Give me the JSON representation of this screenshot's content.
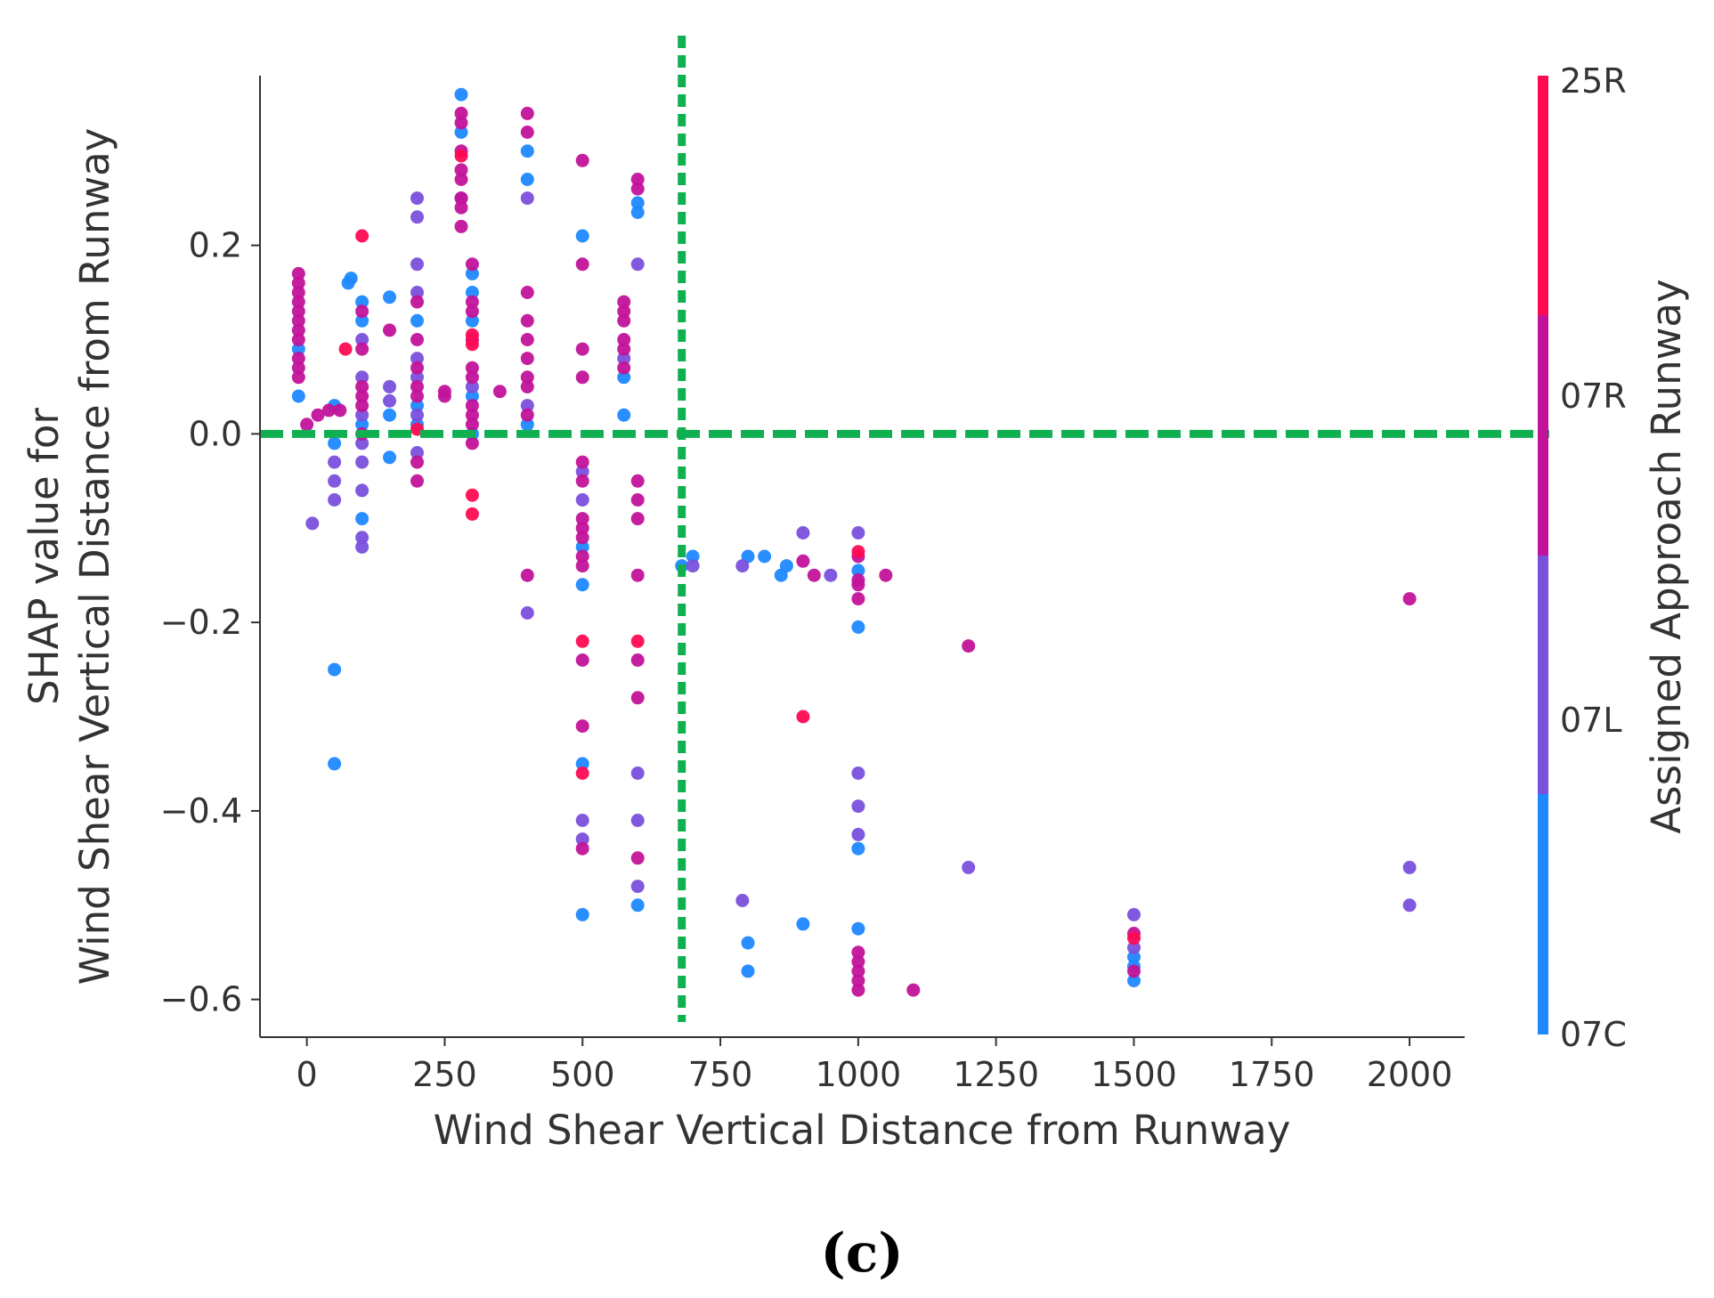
{
  "caption": "(c)",
  "colors": {
    "07C": "#1e88ff",
    "07L": "#7a50dc",
    "07R": "#c2139a",
    "25R": "#ff0a52",
    "threshold_line": "#10b050",
    "axis": "#333333"
  },
  "chart_data": {
    "type": "scatter",
    "title": "",
    "xlabel": "Wind Shear Vertical Distance from Runway",
    "ylabel_line1": "SHAP value for",
    "ylabel_line2": "Wind Shear Vertical Distance from Runway",
    "xlim": [
      -85,
      2100
    ],
    "ylim": [
      -0.64,
      0.38
    ],
    "x_ticks": [
      0,
      250,
      500,
      750,
      1000,
      1250,
      1500,
      1750,
      2000
    ],
    "x_tick_labels": [
      "0",
      "250",
      "500",
      "750",
      "1000",
      "1250",
      "1500",
      "1750",
      "2000"
    ],
    "y_ticks": [
      0.2,
      0.0,
      -0.2,
      -0.4,
      -0.6
    ],
    "y_tick_labels": [
      "0.2",
      "0.0",
      "−0.2",
      "−0.4",
      "−0.6"
    ],
    "threshold_x": 680,
    "threshold_y": 0.0,
    "colorbar": {
      "title": "Assigned Approach Runway",
      "categories": [
        "07C",
        "07L",
        "07R",
        "25R"
      ]
    },
    "series": [
      {
        "name": "07C",
        "points": [
          [
            -15,
            0.04
          ],
          [
            -15,
            0.09
          ],
          [
            50,
            -0.25
          ],
          [
            50,
            -0.35
          ],
          [
            50,
            0.03
          ],
          [
            50,
            -0.01
          ],
          [
            75,
            0.16
          ],
          [
            80,
            0.165
          ],
          [
            100,
            -0.09
          ],
          [
            100,
            0.01
          ],
          [
            100,
            0.12
          ],
          [
            100,
            0.14
          ],
          [
            150,
            0.145
          ],
          [
            150,
            0.02
          ],
          [
            150,
            -0.025
          ],
          [
            200,
            0.12
          ],
          [
            200,
            0.03
          ],
          [
            200,
            0.01
          ],
          [
            280,
            0.36
          ],
          [
            280,
            0.32
          ],
          [
            300,
            0.17
          ],
          [
            300,
            0.15
          ],
          [
            300,
            0.12
          ],
          [
            300,
            0.0
          ],
          [
            300,
            0.04
          ],
          [
            400,
            0.3
          ],
          [
            400,
            0.27
          ],
          [
            400,
            0.01
          ],
          [
            500,
            0.21
          ],
          [
            500,
            -0.16
          ],
          [
            500,
            -0.35
          ],
          [
            500,
            -0.51
          ],
          [
            500,
            -0.12
          ],
          [
            575,
            0.06
          ],
          [
            575,
            0.02
          ],
          [
            600,
            0.245
          ],
          [
            600,
            0.235
          ],
          [
            600,
            -0.5
          ],
          [
            680,
            -0.14
          ],
          [
            700,
            -0.13
          ],
          [
            800,
            -0.13
          ],
          [
            800,
            -0.54
          ],
          [
            800,
            -0.57
          ],
          [
            830,
            -0.13
          ],
          [
            860,
            -0.15
          ],
          [
            870,
            -0.14
          ],
          [
            900,
            -0.52
          ],
          [
            1000,
            -0.205
          ],
          [
            1000,
            -0.44
          ],
          [
            1000,
            -0.525
          ],
          [
            1000,
            -0.145
          ],
          [
            1500,
            -0.555
          ],
          [
            1500,
            -0.565
          ],
          [
            1500,
            -0.58
          ]
        ]
      },
      {
        "name": "07L",
        "points": [
          [
            10,
            -0.095
          ],
          [
            50,
            -0.03
          ],
          [
            50,
            -0.05
          ],
          [
            50,
            -0.07
          ],
          [
            100,
            0.1
          ],
          [
            100,
            0.06
          ],
          [
            100,
            0.02
          ],
          [
            100,
            -0.01
          ],
          [
            100,
            -0.03
          ],
          [
            100,
            -0.06
          ],
          [
            100,
            -0.11
          ],
          [
            100,
            -0.12
          ],
          [
            150,
            0.05
          ],
          [
            150,
            0.035
          ],
          [
            200,
            0.25
          ],
          [
            200,
            0.23
          ],
          [
            200,
            0.18
          ],
          [
            200,
            0.15
          ],
          [
            200,
            0.08
          ],
          [
            200,
            0.06
          ],
          [
            200,
            0.02
          ],
          [
            200,
            -0.02
          ],
          [
            280,
            0.25
          ],
          [
            300,
            0.05
          ],
          [
            400,
            0.25
          ],
          [
            400,
            0.03
          ],
          [
            400,
            -0.19
          ],
          [
            500,
            -0.04
          ],
          [
            500,
            -0.07
          ],
          [
            500,
            -0.41
          ],
          [
            500,
            -0.43
          ],
          [
            575,
            0.08
          ],
          [
            600,
            0.18
          ],
          [
            600,
            -0.36
          ],
          [
            600,
            -0.41
          ],
          [
            600,
            -0.48
          ],
          [
            700,
            -0.14
          ],
          [
            790,
            -0.14
          ],
          [
            790,
            -0.495
          ],
          [
            900,
            -0.105
          ],
          [
            950,
            -0.15
          ],
          [
            1000,
            -0.105
          ],
          [
            1000,
            -0.36
          ],
          [
            1000,
            -0.395
          ],
          [
            1000,
            -0.425
          ],
          [
            1200,
            -0.46
          ],
          [
            1500,
            -0.51
          ],
          [
            1500,
            -0.545
          ],
          [
            2000,
            -0.46
          ],
          [
            2000,
            -0.5
          ]
        ]
      },
      {
        "name": "07R",
        "points": [
          [
            -15,
            0.17
          ],
          [
            -15,
            0.16
          ],
          [
            -15,
            0.15
          ],
          [
            -15,
            0.14
          ],
          [
            -15,
            0.13
          ],
          [
            -15,
            0.12
          ],
          [
            -15,
            0.11
          ],
          [
            -15,
            0.1
          ],
          [
            -15,
            0.08
          ],
          [
            -15,
            0.07
          ],
          [
            -15,
            0.06
          ],
          [
            0,
            0.01
          ],
          [
            20,
            0.02
          ],
          [
            40,
            0.025
          ],
          [
            60,
            0.025
          ],
          [
            100,
            0.05
          ],
          [
            100,
            0.04
          ],
          [
            100,
            0.03
          ],
          [
            100,
            0.0
          ],
          [
            100,
            0.09
          ],
          [
            100,
            0.13
          ],
          [
            150,
            0.11
          ],
          [
            200,
            0.14
          ],
          [
            200,
            0.1
          ],
          [
            200,
            0.07
          ],
          [
            200,
            0.05
          ],
          [
            200,
            0.04
          ],
          [
            200,
            -0.03
          ],
          [
            200,
            -0.05
          ],
          [
            250,
            0.045
          ],
          [
            250,
            0.04
          ],
          [
            280,
            0.34
          ],
          [
            280,
            0.33
          ],
          [
            280,
            0.3
          ],
          [
            280,
            0.28
          ],
          [
            280,
            0.27
          ],
          [
            280,
            0.25
          ],
          [
            280,
            0.24
          ],
          [
            280,
            0.22
          ],
          [
            300,
            0.18
          ],
          [
            300,
            0.14
          ],
          [
            300,
            0.13
          ],
          [
            300,
            0.1
          ],
          [
            300,
            0.07
          ],
          [
            300,
            0.06
          ],
          [
            300,
            0.03
          ],
          [
            300,
            0.02
          ],
          [
            300,
            0.01
          ],
          [
            300,
            -0.01
          ],
          [
            350,
            0.045
          ],
          [
            400,
            0.34
          ],
          [
            400,
            0.32
          ],
          [
            400,
            0.15
          ],
          [
            400,
            0.12
          ],
          [
            400,
            0.1
          ],
          [
            400,
            0.08
          ],
          [
            400,
            0.06
          ],
          [
            400,
            0.05
          ],
          [
            400,
            0.02
          ],
          [
            400,
            -0.15
          ],
          [
            500,
            0.29
          ],
          [
            500,
            0.18
          ],
          [
            500,
            0.09
          ],
          [
            500,
            0.06
          ],
          [
            500,
            -0.03
          ],
          [
            500,
            -0.05
          ],
          [
            500,
            -0.09
          ],
          [
            500,
            -0.1
          ],
          [
            500,
            -0.11
          ],
          [
            500,
            -0.13
          ],
          [
            500,
            -0.14
          ],
          [
            500,
            -0.24
          ],
          [
            500,
            -0.31
          ],
          [
            500,
            -0.44
          ],
          [
            575,
            0.14
          ],
          [
            575,
            0.13
          ],
          [
            575,
            0.12
          ],
          [
            575,
            0.1
          ],
          [
            575,
            0.09
          ],
          [
            575,
            0.07
          ],
          [
            600,
            0.27
          ],
          [
            600,
            0.26
          ],
          [
            600,
            -0.05
          ],
          [
            600,
            -0.07
          ],
          [
            600,
            -0.09
          ],
          [
            600,
            -0.15
          ],
          [
            600,
            -0.24
          ],
          [
            600,
            -0.28
          ],
          [
            600,
            -0.45
          ],
          [
            900,
            -0.135
          ],
          [
            920,
            -0.15
          ],
          [
            1000,
            -0.13
          ],
          [
            1000,
            -0.155
          ],
          [
            1000,
            -0.16
          ],
          [
            1000,
            -0.175
          ],
          [
            1000,
            -0.55
          ],
          [
            1000,
            -0.56
          ],
          [
            1000,
            -0.57
          ],
          [
            1000,
            -0.58
          ],
          [
            1000,
            -0.59
          ],
          [
            1050,
            -0.15
          ],
          [
            1100,
            -0.59
          ],
          [
            1200,
            -0.225
          ],
          [
            1500,
            -0.53
          ],
          [
            1500,
            -0.57
          ],
          [
            2000,
            -0.175
          ]
        ]
      },
      {
        "name": "25R",
        "points": [
          [
            100,
            0.21
          ],
          [
            70,
            0.09
          ],
          [
            200,
            0.005
          ],
          [
            280,
            0.295
          ],
          [
            300,
            0.105
          ],
          [
            300,
            0.095
          ],
          [
            300,
            -0.065
          ],
          [
            300,
            -0.085
          ],
          [
            500,
            -0.22
          ],
          [
            500,
            -0.36
          ],
          [
            600,
            -0.22
          ],
          [
            900,
            -0.3
          ],
          [
            1000,
            -0.125
          ],
          [
            1500,
            -0.535
          ]
        ]
      }
    ]
  }
}
